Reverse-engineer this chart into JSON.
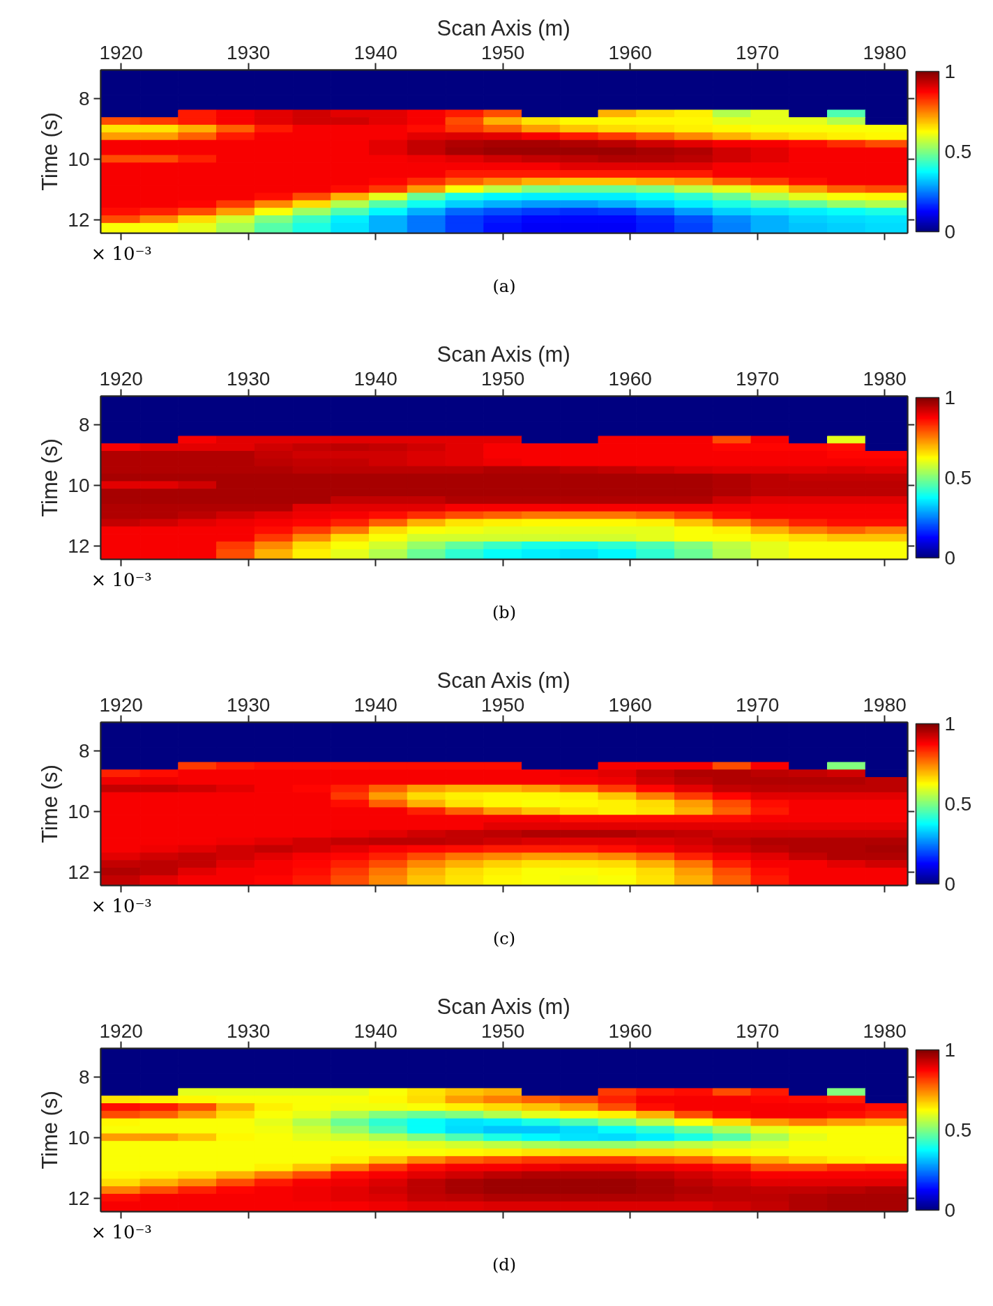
{
  "chart_data": [
    {
      "type": "heatmap",
      "xlabel": "Scan Axis (m)",
      "ylabel": "Time (s)",
      "annotations": [
        "× 10⁻³",
        "(a)"
      ],
      "x": [
        1920,
        1923,
        1926,
        1929,
        1932,
        1935,
        1938,
        1941,
        1944,
        1947,
        1950,
        1953,
        1956,
        1959,
        1962,
        1965,
        1968,
        1971,
        1974,
        1977,
        1980
      ],
      "y": [
        7.25,
        7.5,
        7.75,
        8.0,
        8.25,
        8.5,
        8.75,
        9.0,
        9.25,
        9.5,
        9.75,
        10.0,
        10.25,
        10.5,
        10.75,
        11.0,
        11.25,
        11.5,
        11.75,
        12.0,
        12.25
      ],
      "xlim": [
        1918.4,
        1981.8
      ],
      "ylim": [
        12.45,
        7.05
      ],
      "xticks": [
        1920,
        1930,
        1940,
        1950,
        1960,
        1970,
        1980
      ],
      "yticks": [
        8,
        10,
        12
      ],
      "clim": [
        0,
        1
      ],
      "cticks": [
        0,
        0.5,
        1
      ],
      "cells": [
        [
          0,
          0,
          0,
          0,
          0,
          0,
          0,
          0,
          0,
          0,
          0,
          0,
          0,
          0,
          0,
          0,
          0,
          0,
          0,
          0,
          0
        ],
        [
          0,
          0,
          0,
          0,
          0,
          0,
          0,
          0,
          0,
          0,
          0,
          0,
          0,
          0,
          0,
          0,
          0,
          0,
          0,
          0,
          0
        ],
        [
          0,
          0,
          0,
          0,
          0,
          0,
          0,
          0,
          0,
          0,
          0,
          0,
          0,
          0,
          0,
          0,
          0,
          0,
          0,
          0,
          0
        ],
        [
          0,
          0,
          0,
          0,
          0,
          0,
          0,
          0,
          0,
          0,
          0,
          0,
          0,
          0,
          0,
          0,
          0,
          0,
          0,
          0,
          0
        ],
        [
          0,
          0,
          0,
          0,
          0,
          0,
          0,
          0,
          0,
          0,
          0,
          0,
          0,
          0,
          0,
          0,
          0,
          0,
          0,
          0,
          0
        ],
        [
          0,
          0,
          0.85,
          0.88,
          0.9,
          0.92,
          0.9,
          0.9,
          0.88,
          0.85,
          0.8,
          0,
          0,
          0.7,
          0.66,
          0.64,
          0.55,
          0.6,
          0,
          0.45,
          0
        ],
        [
          0.8,
          0.82,
          0.85,
          0.88,
          0.9,
          0.92,
          0.92,
          0.9,
          0.88,
          0.8,
          0.7,
          0.65,
          0.63,
          0.63,
          0.63,
          0.63,
          0.6,
          0.6,
          0.6,
          0.55,
          0
        ],
        [
          0.65,
          0.65,
          0.7,
          0.78,
          0.85,
          0.88,
          0.88,
          0.88,
          0.86,
          0.82,
          0.78,
          0.72,
          0.68,
          0.66,
          0.65,
          0.64,
          0.63,
          0.62,
          0.62,
          0.62,
          0.62
        ],
        [
          0.72,
          0.72,
          0.78,
          0.85,
          0.88,
          0.88,
          0.88,
          0.88,
          0.9,
          0.91,
          0.9,
          0.88,
          0.85,
          0.82,
          0.78,
          0.74,
          0.7,
          0.67,
          0.65,
          0.64,
          0.63
        ],
        [
          0.88,
          0.88,
          0.88,
          0.88,
          0.88,
          0.88,
          0.88,
          0.9,
          0.93,
          0.95,
          0.96,
          0.96,
          0.95,
          0.94,
          0.92,
          0.9,
          0.88,
          0.88,
          0.86,
          0.83,
          0.8
        ],
        [
          0.88,
          0.88,
          0.88,
          0.88,
          0.88,
          0.88,
          0.88,
          0.9,
          0.93,
          0.96,
          0.97,
          0.97,
          0.97,
          0.97,
          0.96,
          0.95,
          0.92,
          0.9,
          0.88,
          0.88,
          0.88
        ],
        [
          0.8,
          0.8,
          0.84,
          0.88,
          0.88,
          0.88,
          0.88,
          0.88,
          0.89,
          0.9,
          0.92,
          0.93,
          0.94,
          0.95,
          0.95,
          0.94,
          0.92,
          0.9,
          0.88,
          0.88,
          0.88
        ],
        [
          0.88,
          0.88,
          0.88,
          0.88,
          0.88,
          0.88,
          0.88,
          0.88,
          0.88,
          0.88,
          0.88,
          0.88,
          0.9,
          0.9,
          0.9,
          0.9,
          0.88,
          0.88,
          0.88,
          0.88,
          0.88
        ],
        [
          0.88,
          0.88,
          0.88,
          0.88,
          0.88,
          0.88,
          0.88,
          0.88,
          0.88,
          0.85,
          0.85,
          0.85,
          0.85,
          0.85,
          0.85,
          0.85,
          0.88,
          0.88,
          0.88,
          0.88,
          0.88
        ],
        [
          0.88,
          0.88,
          0.88,
          0.88,
          0.88,
          0.88,
          0.88,
          0.87,
          0.83,
          0.78,
          0.74,
          0.7,
          0.68,
          0.68,
          0.7,
          0.72,
          0.78,
          0.82,
          0.86,
          0.88,
          0.88
        ],
        [
          0.88,
          0.88,
          0.88,
          0.88,
          0.88,
          0.88,
          0.86,
          0.82,
          0.72,
          0.62,
          0.56,
          0.5,
          0.48,
          0.48,
          0.5,
          0.56,
          0.6,
          0.65,
          0.72,
          0.78,
          0.8
        ],
        [
          0.88,
          0.88,
          0.88,
          0.88,
          0.86,
          0.8,
          0.7,
          0.6,
          0.48,
          0.4,
          0.37,
          0.36,
          0.36,
          0.36,
          0.38,
          0.42,
          0.48,
          0.55,
          0.6,
          0.62,
          0.63
        ],
        [
          0.88,
          0.88,
          0.87,
          0.82,
          0.74,
          0.66,
          0.55,
          0.46,
          0.39,
          0.33,
          0.3,
          0.28,
          0.28,
          0.3,
          0.33,
          0.36,
          0.4,
          0.44,
          0.47,
          0.52,
          0.55
        ],
        [
          0.86,
          0.84,
          0.8,
          0.72,
          0.62,
          0.53,
          0.45,
          0.37,
          0.3,
          0.23,
          0.2,
          0.18,
          0.17,
          0.18,
          0.22,
          0.28,
          0.33,
          0.35,
          0.36,
          0.38,
          0.4
        ],
        [
          0.8,
          0.74,
          0.66,
          0.58,
          0.5,
          0.43,
          0.36,
          0.3,
          0.24,
          0.18,
          0.15,
          0.13,
          0.13,
          0.13,
          0.16,
          0.2,
          0.26,
          0.3,
          0.33,
          0.34,
          0.35
        ],
        [
          0.62,
          0.62,
          0.6,
          0.54,
          0.46,
          0.4,
          0.35,
          0.3,
          0.24,
          0.18,
          0.14,
          0.12,
          0.12,
          0.12,
          0.15,
          0.19,
          0.25,
          0.3,
          0.32,
          0.33,
          0.34
        ]
      ]
    },
    {
      "type": "heatmap",
      "xlabel": "Scan Axis (m)",
      "ylabel": "Time (s)",
      "annotations": [
        "× 10⁻³",
        "(b)"
      ],
      "x": [
        1920,
        1923,
        1926,
        1929,
        1932,
        1935,
        1938,
        1941,
        1944,
        1947,
        1950,
        1953,
        1956,
        1959,
        1962,
        1965,
        1968,
        1971,
        1974,
        1977,
        1980
      ],
      "y": [
        7.25,
        7.5,
        7.75,
        8.0,
        8.25,
        8.5,
        8.75,
        9.0,
        9.25,
        9.5,
        9.75,
        10.0,
        10.25,
        10.5,
        10.75,
        11.0,
        11.25,
        11.5,
        11.75,
        12.0,
        12.25
      ],
      "xlim": [
        1918.4,
        1981.8
      ],
      "ylim": [
        12.45,
        7.05
      ],
      "xticks": [
        1920,
        1930,
        1940,
        1950,
        1960,
        1970,
        1980
      ],
      "yticks": [
        8,
        10,
        12
      ],
      "clim": [
        0,
        1
      ],
      "cticks": [
        0,
        0.5,
        1
      ],
      "cells": [
        [
          0,
          0,
          0,
          0,
          0,
          0,
          0,
          0,
          0,
          0,
          0,
          0,
          0,
          0,
          0,
          0,
          0,
          0,
          0,
          0,
          0
        ],
        [
          0,
          0,
          0,
          0,
          0,
          0,
          0,
          0,
          0,
          0,
          0,
          0,
          0,
          0,
          0,
          0,
          0,
          0,
          0,
          0,
          0
        ],
        [
          0,
          0,
          0,
          0,
          0,
          0,
          0,
          0,
          0,
          0,
          0,
          0,
          0,
          0,
          0,
          0,
          0,
          0,
          0,
          0,
          0
        ],
        [
          0,
          0,
          0,
          0,
          0,
          0,
          0,
          0,
          0,
          0,
          0,
          0,
          0,
          0,
          0,
          0,
          0,
          0,
          0,
          0,
          0
        ],
        [
          0,
          0,
          0,
          0,
          0,
          0,
          0,
          0,
          0,
          0,
          0,
          0,
          0,
          0,
          0,
          0,
          0,
          0,
          0,
          0,
          0
        ],
        [
          0,
          0,
          0.88,
          0.9,
          0.9,
          0.9,
          0.9,
          0.9,
          0.9,
          0.9,
          0.9,
          0,
          0,
          0.88,
          0.88,
          0.88,
          0.8,
          0.88,
          0,
          0.6,
          0
        ],
        [
          0.88,
          0.9,
          0.9,
          0.9,
          0.92,
          0.93,
          0.94,
          0.93,
          0.92,
          0.9,
          0.88,
          0.88,
          0.88,
          0.88,
          0.88,
          0.88,
          0.87,
          0.87,
          0.87,
          0.86,
          0
        ],
        [
          0.95,
          0.95,
          0.95,
          0.95,
          0.93,
          0.92,
          0.92,
          0.92,
          0.91,
          0.9,
          0.88,
          0.88,
          0.88,
          0.88,
          0.88,
          0.88,
          0.88,
          0.88,
          0.88,
          0.87,
          0.87
        ],
        [
          0.95,
          0.95,
          0.95,
          0.95,
          0.94,
          0.93,
          0.93,
          0.92,
          0.91,
          0.9,
          0.89,
          0.88,
          0.88,
          0.88,
          0.88,
          0.88,
          0.88,
          0.88,
          0.88,
          0.88,
          0.88
        ],
        [
          0.95,
          0.95,
          0.95,
          0.95,
          0.95,
          0.94,
          0.94,
          0.94,
          0.94,
          0.94,
          0.95,
          0.95,
          0.94,
          0.93,
          0.92,
          0.91,
          0.9,
          0.9,
          0.9,
          0.91,
          0.9
        ],
        [
          0.96,
          0.96,
          0.96,
          0.96,
          0.96,
          0.96,
          0.96,
          0.96,
          0.96,
          0.96,
          0.96,
          0.96,
          0.96,
          0.96,
          0.96,
          0.96,
          0.95,
          0.94,
          0.93,
          0.93,
          0.93
        ],
        [
          0.9,
          0.9,
          0.92,
          0.96,
          0.96,
          0.96,
          0.96,
          0.96,
          0.96,
          0.96,
          0.96,
          0.96,
          0.96,
          0.96,
          0.96,
          0.96,
          0.95,
          0.94,
          0.94,
          0.94,
          0.94
        ],
        [
          0.96,
          0.96,
          0.96,
          0.96,
          0.96,
          0.96,
          0.96,
          0.96,
          0.96,
          0.96,
          0.96,
          0.96,
          0.96,
          0.96,
          0.96,
          0.96,
          0.95,
          0.94,
          0.94,
          0.94,
          0.94
        ],
        [
          0.96,
          0.96,
          0.96,
          0.96,
          0.96,
          0.96,
          0.93,
          0.93,
          0.93,
          0.95,
          0.95,
          0.95,
          0.95,
          0.95,
          0.95,
          0.95,
          0.92,
          0.9,
          0.9,
          0.9,
          0.9
        ],
        [
          0.95,
          0.95,
          0.95,
          0.95,
          0.95,
          0.9,
          0.9,
          0.9,
          0.9,
          0.88,
          0.88,
          0.88,
          0.88,
          0.88,
          0.88,
          0.88,
          0.88,
          0.88,
          0.88,
          0.88,
          0.88
        ],
        [
          0.95,
          0.95,
          0.94,
          0.92,
          0.9,
          0.89,
          0.88,
          0.86,
          0.83,
          0.8,
          0.78,
          0.76,
          0.76,
          0.76,
          0.78,
          0.82,
          0.86,
          0.88,
          0.88,
          0.88,
          0.88
        ],
        [
          0.93,
          0.92,
          0.9,
          0.89,
          0.88,
          0.87,
          0.84,
          0.78,
          0.7,
          0.65,
          0.64,
          0.63,
          0.63,
          0.63,
          0.64,
          0.68,
          0.74,
          0.8,
          0.84,
          0.86,
          0.86
        ],
        [
          0.88,
          0.88,
          0.88,
          0.88,
          0.86,
          0.82,
          0.76,
          0.66,
          0.62,
          0.61,
          0.6,
          0.6,
          0.6,
          0.6,
          0.6,
          0.62,
          0.64,
          0.7,
          0.75,
          0.78,
          0.75
        ],
        [
          0.88,
          0.88,
          0.88,
          0.88,
          0.82,
          0.74,
          0.66,
          0.62,
          0.58,
          0.58,
          0.58,
          0.58,
          0.58,
          0.58,
          0.6,
          0.62,
          0.62,
          0.64,
          0.66,
          0.68,
          0.68
        ],
        [
          0.88,
          0.88,
          0.88,
          0.82,
          0.74,
          0.66,
          0.62,
          0.58,
          0.52,
          0.47,
          0.43,
          0.4,
          0.4,
          0.42,
          0.45,
          0.5,
          0.56,
          0.6,
          0.62,
          0.62,
          0.62
        ],
        [
          0.88,
          0.88,
          0.88,
          0.8,
          0.7,
          0.64,
          0.6,
          0.55,
          0.48,
          0.42,
          0.38,
          0.36,
          0.35,
          0.37,
          0.42,
          0.48,
          0.55,
          0.6,
          0.62,
          0.62,
          0.62
        ]
      ]
    },
    {
      "type": "heatmap",
      "xlabel": "Scan Axis (m)",
      "ylabel": "Time (s)",
      "annotations": [
        "× 10⁻³",
        "(c)"
      ],
      "x": [
        1920,
        1923,
        1926,
        1929,
        1932,
        1935,
        1938,
        1941,
        1944,
        1947,
        1950,
        1953,
        1956,
        1959,
        1962,
        1965,
        1968,
        1971,
        1974,
        1977,
        1980
      ],
      "y": [
        7.25,
        7.5,
        7.75,
        8.0,
        8.25,
        8.5,
        8.75,
        9.0,
        9.25,
        9.5,
        9.75,
        10.0,
        10.25,
        10.5,
        10.75,
        11.0,
        11.25,
        11.5,
        11.75,
        12.0,
        12.25
      ],
      "xlim": [
        1918.4,
        1981.8
      ],
      "ylim": [
        12.45,
        7.05
      ],
      "xticks": [
        1920,
        1930,
        1940,
        1950,
        1960,
        1970,
        1980
      ],
      "yticks": [
        8,
        10,
        12
      ],
      "clim": [
        0,
        1
      ],
      "cticks": [
        0,
        0.5,
        1
      ],
      "cells": [
        [
          0,
          0,
          0,
          0,
          0,
          0,
          0,
          0,
          0,
          0,
          0,
          0,
          0,
          0,
          0,
          0,
          0,
          0,
          0,
          0,
          0
        ],
        [
          0,
          0,
          0,
          0,
          0,
          0,
          0,
          0,
          0,
          0,
          0,
          0,
          0,
          0,
          0,
          0,
          0,
          0,
          0,
          0,
          0
        ],
        [
          0,
          0,
          0,
          0,
          0,
          0,
          0,
          0,
          0,
          0,
          0,
          0,
          0,
          0,
          0,
          0,
          0,
          0,
          0,
          0,
          0
        ],
        [
          0,
          0,
          0,
          0,
          0,
          0,
          0,
          0,
          0,
          0,
          0,
          0,
          0,
          0,
          0,
          0,
          0,
          0,
          0,
          0,
          0
        ],
        [
          0,
          0,
          0,
          0,
          0,
          0,
          0,
          0,
          0,
          0,
          0,
          0,
          0,
          0,
          0,
          0,
          0,
          0,
          0,
          0,
          0
        ],
        [
          0,
          0,
          0.82,
          0.85,
          0.86,
          0.86,
          0.86,
          0.86,
          0.86,
          0.86,
          0.86,
          0,
          0,
          0.88,
          0.88,
          0.88,
          0.8,
          0.88,
          0,
          0.5,
          0
        ],
        [
          0.84,
          0.86,
          0.88,
          0.88,
          0.88,
          0.88,
          0.88,
          0.88,
          0.88,
          0.88,
          0.88,
          0.88,
          0.89,
          0.9,
          0.93,
          0.95,
          0.95,
          0.94,
          0.93,
          0.92,
          0
        ],
        [
          0.89,
          0.89,
          0.88,
          0.88,
          0.88,
          0.88,
          0.88,
          0.88,
          0.88,
          0.88,
          0.88,
          0.88,
          0.88,
          0.89,
          0.92,
          0.94,
          0.95,
          0.95,
          0.95,
          0.95,
          0.94
        ],
        [
          0.93,
          0.93,
          0.92,
          0.9,
          0.88,
          0.87,
          0.84,
          0.78,
          0.72,
          0.7,
          0.7,
          0.72,
          0.76,
          0.82,
          0.87,
          0.9,
          0.93,
          0.94,
          0.94,
          0.94,
          0.94
        ],
        [
          0.88,
          0.88,
          0.88,
          0.88,
          0.88,
          0.88,
          0.82,
          0.72,
          0.66,
          0.64,
          0.63,
          0.63,
          0.64,
          0.68,
          0.75,
          0.82,
          0.87,
          0.9,
          0.9,
          0.9,
          0.9
        ],
        [
          0.88,
          0.88,
          0.88,
          0.88,
          0.88,
          0.88,
          0.86,
          0.78,
          0.7,
          0.65,
          0.63,
          0.62,
          0.63,
          0.64,
          0.66,
          0.72,
          0.8,
          0.86,
          0.88,
          0.88,
          0.88
        ],
        [
          0.88,
          0.88,
          0.88,
          0.88,
          0.88,
          0.88,
          0.88,
          0.88,
          0.84,
          0.78,
          0.72,
          0.68,
          0.65,
          0.64,
          0.65,
          0.7,
          0.78,
          0.85,
          0.88,
          0.88,
          0.88
        ],
        [
          0.88,
          0.88,
          0.88,
          0.88,
          0.88,
          0.88,
          0.88,
          0.88,
          0.88,
          0.88,
          0.88,
          0.88,
          0.86,
          0.86,
          0.86,
          0.86,
          0.86,
          0.88,
          0.88,
          0.88,
          0.88
        ],
        [
          0.88,
          0.88,
          0.88,
          0.88,
          0.88,
          0.88,
          0.88,
          0.88,
          0.88,
          0.88,
          0.9,
          0.9,
          0.9,
          0.9,
          0.9,
          0.9,
          0.9,
          0.9,
          0.9,
          0.9,
          0.9
        ],
        [
          0.88,
          0.88,
          0.88,
          0.88,
          0.88,
          0.88,
          0.89,
          0.9,
          0.92,
          0.93,
          0.94,
          0.95,
          0.95,
          0.95,
          0.94,
          0.93,
          0.92,
          0.92,
          0.92,
          0.92,
          0.92
        ],
        [
          0.88,
          0.88,
          0.88,
          0.89,
          0.9,
          0.92,
          0.93,
          0.94,
          0.94,
          0.93,
          0.92,
          0.91,
          0.9,
          0.9,
          0.91,
          0.92,
          0.94,
          0.95,
          0.95,
          0.95,
          0.95
        ],
        [
          0.88,
          0.89,
          0.9,
          0.92,
          0.93,
          0.92,
          0.9,
          0.88,
          0.87,
          0.86,
          0.85,
          0.85,
          0.85,
          0.86,
          0.88,
          0.9,
          0.92,
          0.94,
          0.95,
          0.95,
          0.96
        ],
        [
          0.9,
          0.92,
          0.93,
          0.92,
          0.9,
          0.88,
          0.87,
          0.84,
          0.8,
          0.76,
          0.74,
          0.72,
          0.72,
          0.74,
          0.78,
          0.84,
          0.88,
          0.9,
          0.93,
          0.95,
          0.95
        ],
        [
          0.93,
          0.94,
          0.93,
          0.9,
          0.88,
          0.87,
          0.84,
          0.8,
          0.74,
          0.7,
          0.67,
          0.65,
          0.65,
          0.66,
          0.7,
          0.76,
          0.84,
          0.88,
          0.88,
          0.9,
          0.92
        ],
        [
          0.95,
          0.94,
          0.9,
          0.88,
          0.88,
          0.86,
          0.82,
          0.76,
          0.7,
          0.66,
          0.64,
          0.62,
          0.62,
          0.63,
          0.66,
          0.72,
          0.8,
          0.86,
          0.88,
          0.88,
          0.88
        ],
        [
          0.93,
          0.9,
          0.88,
          0.88,
          0.87,
          0.85,
          0.8,
          0.74,
          0.68,
          0.65,
          0.63,
          0.62,
          0.61,
          0.62,
          0.65,
          0.7,
          0.78,
          0.85,
          0.88,
          0.88,
          0.88
        ]
      ]
    },
    {
      "type": "heatmap",
      "xlabel": "Scan Axis (m)",
      "ylabel": "Time (s)",
      "annotations": [
        "× 10⁻³",
        "(d)"
      ],
      "x": [
        1920,
        1923,
        1926,
        1929,
        1932,
        1935,
        1938,
        1941,
        1944,
        1947,
        1950,
        1953,
        1956,
        1959,
        1962,
        1965,
        1968,
        1971,
        1974,
        1977,
        1980
      ],
      "y": [
        7.25,
        7.5,
        7.75,
        8.0,
        8.25,
        8.5,
        8.75,
        9.0,
        9.25,
        9.5,
        9.75,
        10.0,
        10.25,
        10.5,
        10.75,
        11.0,
        11.25,
        11.5,
        11.75,
        12.0,
        12.25
      ],
      "xlim": [
        1918.4,
        1981.8
      ],
      "ylim": [
        12.45,
        7.05
      ],
      "xticks": [
        1920,
        1930,
        1940,
        1950,
        1960,
        1970,
        1980
      ],
      "yticks": [
        8,
        10,
        12
      ],
      "clim": [
        0,
        1
      ],
      "cticks": [
        0,
        0.5,
        1
      ],
      "cells": [
        [
          0,
          0,
          0,
          0,
          0,
          0,
          0,
          0,
          0,
          0,
          0,
          0,
          0,
          0,
          0,
          0,
          0,
          0,
          0,
          0,
          0
        ],
        [
          0,
          0,
          0,
          0,
          0,
          0,
          0,
          0,
          0,
          0,
          0,
          0,
          0,
          0,
          0,
          0,
          0,
          0,
          0,
          0,
          0
        ],
        [
          0,
          0,
          0,
          0,
          0,
          0,
          0,
          0,
          0,
          0,
          0,
          0,
          0,
          0,
          0,
          0,
          0,
          0,
          0,
          0,
          0
        ],
        [
          0,
          0,
          0,
          0,
          0,
          0,
          0,
          0,
          0,
          0,
          0,
          0,
          0,
          0,
          0,
          0,
          0,
          0,
          0,
          0,
          0
        ],
        [
          0,
          0,
          0,
          0,
          0,
          0,
          0,
          0,
          0,
          0,
          0,
          0,
          0,
          0,
          0,
          0,
          0,
          0,
          0,
          0,
          0
        ],
        [
          0,
          0,
          0.6,
          0.6,
          0.6,
          0.6,
          0.6,
          0.62,
          0.65,
          0.68,
          0.7,
          0,
          0,
          0.82,
          0.85,
          0.86,
          0.8,
          0.85,
          0,
          0.5,
          0
        ],
        [
          0.65,
          0.64,
          0.63,
          0.62,
          0.62,
          0.62,
          0.62,
          0.63,
          0.66,
          0.72,
          0.75,
          0.78,
          0.8,
          0.84,
          0.88,
          0.88,
          0.88,
          0.87,
          0.86,
          0.85,
          0
        ],
        [
          0.86,
          0.85,
          0.8,
          0.7,
          0.64,
          0.62,
          0.61,
          0.61,
          0.62,
          0.64,
          0.66,
          0.68,
          0.72,
          0.8,
          0.86,
          0.88,
          0.88,
          0.88,
          0.88,
          0.88,
          0.86
        ],
        [
          0.8,
          0.78,
          0.72,
          0.66,
          0.62,
          0.6,
          0.55,
          0.5,
          0.48,
          0.5,
          0.55,
          0.6,
          0.62,
          0.64,
          0.7,
          0.8,
          0.86,
          0.88,
          0.88,
          0.86,
          0.84
        ],
        [
          0.63,
          0.62,
          0.62,
          0.62,
          0.6,
          0.55,
          0.48,
          0.42,
          0.38,
          0.35,
          0.36,
          0.4,
          0.45,
          0.5,
          0.56,
          0.62,
          0.66,
          0.72,
          0.75,
          0.72,
          0.7
        ],
        [
          0.62,
          0.62,
          0.62,
          0.62,
          0.61,
          0.58,
          0.52,
          0.45,
          0.38,
          0.34,
          0.32,
          0.32,
          0.34,
          0.38,
          0.42,
          0.48,
          0.54,
          0.6,
          0.62,
          0.62,
          0.62
        ],
        [
          0.72,
          0.72,
          0.68,
          0.63,
          0.62,
          0.6,
          0.58,
          0.55,
          0.5,
          0.45,
          0.4,
          0.37,
          0.35,
          0.34,
          0.36,
          0.4,
          0.46,
          0.54,
          0.6,
          0.62,
          0.62
        ],
        [
          0.62,
          0.62,
          0.62,
          0.62,
          0.62,
          0.62,
          0.62,
          0.61,
          0.6,
          0.58,
          0.56,
          0.54,
          0.52,
          0.52,
          0.54,
          0.56,
          0.58,
          0.6,
          0.62,
          0.62,
          0.62
        ],
        [
          0.62,
          0.62,
          0.62,
          0.62,
          0.62,
          0.62,
          0.62,
          0.62,
          0.62,
          0.63,
          0.64,
          0.65,
          0.66,
          0.66,
          0.66,
          0.65,
          0.63,
          0.62,
          0.62,
          0.62,
          0.62
        ],
        [
          0.62,
          0.62,
          0.62,
          0.62,
          0.62,
          0.62,
          0.64,
          0.68,
          0.74,
          0.78,
          0.8,
          0.82,
          0.82,
          0.82,
          0.8,
          0.78,
          0.74,
          0.7,
          0.66,
          0.64,
          0.63
        ],
        [
          0.62,
          0.62,
          0.62,
          0.62,
          0.64,
          0.68,
          0.75,
          0.82,
          0.86,
          0.88,
          0.88,
          0.89,
          0.9,
          0.9,
          0.89,
          0.88,
          0.86,
          0.8,
          0.8,
          0.83,
          0.84
        ],
        [
          0.63,
          0.64,
          0.66,
          0.7,
          0.75,
          0.8,
          0.86,
          0.88,
          0.9,
          0.92,
          0.94,
          0.95,
          0.95,
          0.95,
          0.94,
          0.92,
          0.9,
          0.88,
          0.88,
          0.88,
          0.88
        ],
        [
          0.66,
          0.7,
          0.74,
          0.8,
          0.85,
          0.88,
          0.89,
          0.91,
          0.94,
          0.96,
          0.97,
          0.97,
          0.97,
          0.97,
          0.96,
          0.94,
          0.92,
          0.9,
          0.9,
          0.9,
          0.9
        ],
        [
          0.75,
          0.8,
          0.84,
          0.87,
          0.88,
          0.89,
          0.9,
          0.92,
          0.94,
          0.96,
          0.97,
          0.97,
          0.97,
          0.97,
          0.96,
          0.95,
          0.94,
          0.93,
          0.93,
          0.94,
          0.95
        ],
        [
          0.86,
          0.88,
          0.88,
          0.88,
          0.88,
          0.89,
          0.9,
          0.91,
          0.93,
          0.94,
          0.95,
          0.95,
          0.95,
          0.95,
          0.95,
          0.94,
          0.94,
          0.94,
          0.95,
          0.96,
          0.96
        ],
        [
          0.88,
          0.88,
          0.88,
          0.88,
          0.88,
          0.88,
          0.88,
          0.89,
          0.9,
          0.9,
          0.91,
          0.91,
          0.91,
          0.91,
          0.91,
          0.91,
          0.92,
          0.93,
          0.95,
          0.96,
          0.96
        ]
      ]
    }
  ]
}
